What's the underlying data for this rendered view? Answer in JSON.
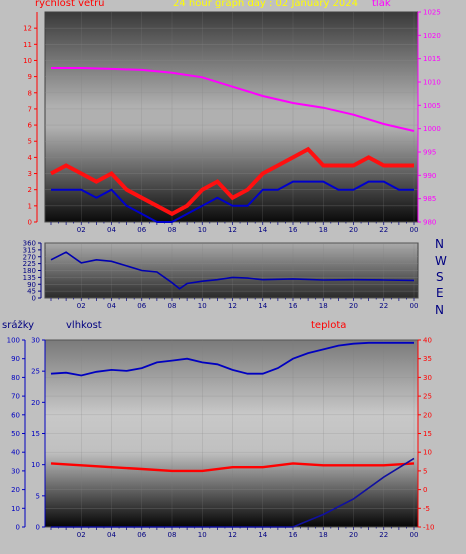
{
  "header": {
    "left_label": "rychlost větru",
    "title": "24 hour graph day : 02 January 2024",
    "right_label": "tlak"
  },
  "compass": [
    "N",
    "W",
    "S",
    "E",
    "N"
  ],
  "bottom_labels": {
    "left": "srážky",
    "mid": "vlhkost",
    "right": "teplota"
  },
  "colors": {
    "wind": "#ff1010",
    "gust": "#0000cc",
    "pressure": "#ff00ff",
    "direction": "#0000b0",
    "humidity": "#0000c0",
    "temperature": "#ff0000",
    "rain": "#1010a0",
    "left_axis_top": "#ff0000",
    "right_axis_top": "#ff00ff",
    "bottom_axes": "#0000c0",
    "right_axis_bottom": "#ff0000",
    "title": "#ffff00"
  },
  "chart_data": [
    {
      "type": "line",
      "name": "wind-pressure",
      "x_ticks": [
        "02",
        "04",
        "06",
        "08",
        "10",
        "12",
        "14",
        "16",
        "18",
        "20",
        "22",
        "00"
      ],
      "y_left_ticks": [
        "0",
        "1",
        "2",
        "3",
        "4",
        "5",
        "6",
        "7",
        "8",
        "9",
        "10",
        "11",
        "12"
      ],
      "y_left_range": [
        0,
        13
      ],
      "y_right_ticks": [
        "980",
        "985",
        "990",
        "995",
        "1000",
        "1005",
        "1010",
        "1015",
        "1020",
        "1025"
      ],
      "y_right_range": [
        980,
        1025
      ],
      "series": [
        {
          "name": "tlak",
          "hours": [
            0,
            2,
            4,
            6,
            8,
            10,
            12,
            14,
            16,
            18,
            20,
            22,
            24
          ],
          "values": [
            1013,
            1013,
            1012.8,
            1012.6,
            1012,
            1011,
            1009,
            1007,
            1005.5,
            1004.5,
            1003,
            1001,
            999.5
          ]
        },
        {
          "name": "",
          "hours": [
            0,
            1,
            2,
            3,
            4,
            5,
            6,
            7,
            8,
            9,
            10,
            11,
            12,
            13,
            14,
            15,
            16,
            17,
            18,
            19,
            20,
            21,
            22,
            23,
            24
          ],
          "values": [
            3,
            3.5,
            3,
            2.5,
            3,
            2,
            1.5,
            1,
            0.5,
            1,
            2,
            2.5,
            1.5,
            2,
            3,
            3.5,
            4,
            4.5,
            3.5,
            3.5,
            3.5,
            4,
            3.5,
            3.5,
            3.5
          ]
        },
        {
          "name": "",
          "hours": [
            0,
            1,
            2,
            3,
            4,
            5,
            6,
            7,
            8,
            9,
            10,
            11,
            12,
            13,
            14,
            15,
            16,
            17,
            18,
            19,
            20,
            21,
            22,
            23,
            24
          ],
          "values": [
            2,
            2,
            2,
            1.5,
            2,
            1,
            0.5,
            0,
            0,
            0.5,
            1,
            1.5,
            1,
            1,
            2,
            2,
            2.5,
            2.5,
            2.5,
            2,
            2,
            2.5,
            2.5,
            2,
            2
          ]
        }
      ]
    },
    {
      "type": "line",
      "name": "wind-direction",
      "x_ticks": [
        "02",
        "04",
        "06",
        "08",
        "10",
        "12",
        "14",
        "16",
        "18",
        "20",
        "22",
        "00"
      ],
      "y_ticks": [
        "0",
        "45",
        "90",
        "135",
        "180",
        "225",
        "270",
        "315",
        "360"
      ],
      "y_range": [
        0,
        360
      ],
      "series": [
        {
          "name": "",
          "hours": [
            0,
            1,
            2,
            3,
            4,
            5,
            6,
            7,
            8,
            8.5,
            9,
            10,
            11,
            12,
            13,
            14,
            16,
            18,
            20,
            22,
            24
          ],
          "values": [
            250,
            300,
            230,
            250,
            240,
            210,
            180,
            170,
            100,
            60,
            95,
            110,
            120,
            135,
            130,
            120,
            125,
            118,
            120,
            118,
            115
          ]
        }
      ]
    },
    {
      "type": "line",
      "name": "humidity-temperature-rain",
      "x_ticks": [
        "02",
        "04",
        "06",
        "08",
        "10",
        "12",
        "14",
        "16",
        "18",
        "20",
        "22",
        "00"
      ],
      "y_left_ticks": [
        "0",
        "10",
        "20",
        "30",
        "40",
        "50",
        "60",
        "70",
        "80",
        "90",
        "100"
      ],
      "y_left_range": [
        0,
        100
      ],
      "y_mid_ticks": [
        "0",
        "5",
        "10",
        "15",
        "20",
        "25",
        "30"
      ],
      "y_mid_range": [
        0,
        30
      ],
      "y_right_ticks": [
        "-10",
        "-5",
        "0",
        "5",
        "10",
        "15",
        "20",
        "25",
        "30",
        "35",
        "40"
      ],
      "y_right_range": [
        -10,
        40
      ],
      "series": [
        {
          "name": "vlhkost",
          "hours": [
            0,
            1,
            2,
            3,
            4,
            5,
            6,
            7,
            8,
            9,
            10,
            11,
            12,
            13,
            14,
            15,
            16,
            17,
            18,
            19,
            20,
            21,
            22,
            23,
            24
          ],
          "values": [
            82,
            82.5,
            81,
            83,
            84,
            83.5,
            85,
            88,
            89,
            90,
            88,
            87,
            84,
            82,
            82,
            85,
            90,
            93,
            95,
            97,
            98,
            98.5,
            98.5,
            98.5,
            98.5
          ]
        },
        {
          "name": "teplota",
          "hours": [
            0,
            2,
            4,
            6,
            8,
            10,
            12,
            14,
            16,
            18,
            20,
            22,
            24
          ],
          "values": [
            7,
            6.5,
            6,
            5.5,
            5,
            5,
            6,
            6,
            7,
            6.5,
            6.5,
            6.5,
            7
          ]
        },
        {
          "name": "srážky",
          "hours": [
            0,
            16,
            18,
            20,
            22,
            24
          ],
          "values": [
            0,
            0,
            2,
            4.5,
            8,
            11
          ]
        }
      ]
    }
  ]
}
